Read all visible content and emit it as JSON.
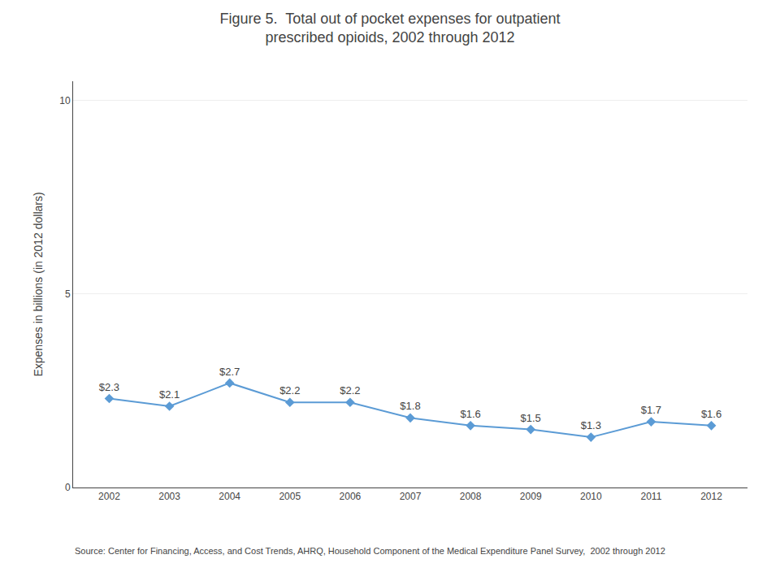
{
  "chart_data": {
    "type": "line",
    "title": "Figure 5.  Total out of pocket expenses for outpatient\nprescribed opioids, 2002 through 2012",
    "y_label": "Expenses in billions (in 2012 dollars)",
    "annotations": [
      "Source: Center for Financing, Access, and Cost Trends, AHRQ, Household Component of the Medical Expenditure Panel Survey,  2002 through 2012"
    ],
    "x": [
      2002,
      2003,
      2004,
      2005,
      2006,
      2007,
      2008,
      2009,
      2010,
      2011,
      2012
    ],
    "values": [
      2.3,
      2.1,
      2.7,
      2.2,
      2.2,
      1.8,
      1.6,
      1.5,
      1.3,
      1.7,
      1.6
    ],
    "value_labels": [
      "$2.3",
      "$2.1",
      "$2.7",
      "$2.2",
      "$2.2",
      "$1.8",
      "$1.6",
      "$1.5",
      "$1.3",
      "$1.7",
      "$1.6"
    ],
    "data_labels": true,
    "color": "#5B9BD5",
    "marker": "diamond",
    "line_style": "solid",
    "xlim": [
      2001.4,
      2012.6
    ],
    "xticks": [
      2002,
      2003,
      2004,
      2005,
      2006,
      2007,
      2008,
      2009,
      2010,
      2011,
      2012
    ],
    "ylim": [
      0,
      10.5
    ],
    "yticks": [
      0,
      5,
      10
    ],
    "grid": "y"
  }
}
